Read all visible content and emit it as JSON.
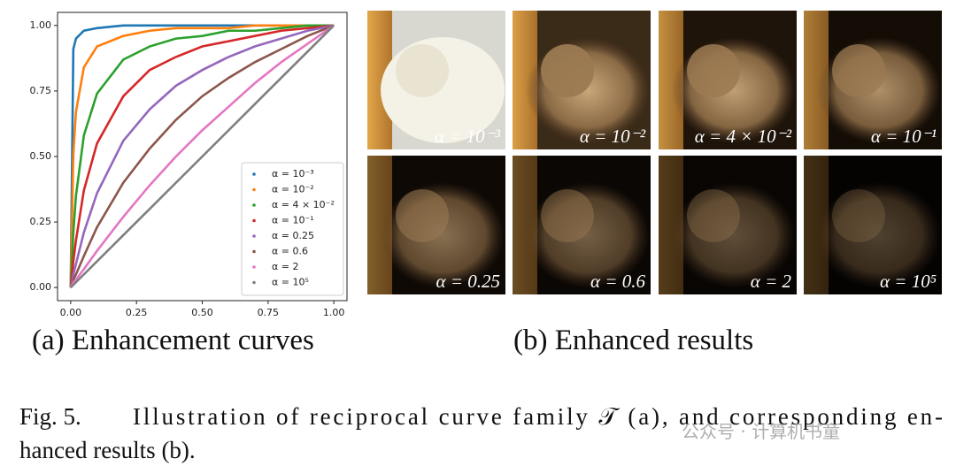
{
  "chart_data": {
    "type": "line",
    "x": [
      0,
      0.01,
      0.02,
      0.05,
      0.1,
      0.2,
      0.3,
      0.4,
      0.5,
      0.6,
      0.7,
      0.8,
      0.9,
      1
    ],
    "series": [
      {
        "name": "α = 10⁻³",
        "color": "#1f77b4",
        "values": [
          0,
          0.91,
          0.95,
          0.98,
          0.99,
          1,
          1,
          1,
          1,
          1,
          1,
          1,
          1,
          1
        ]
      },
      {
        "name": "α = 10⁻²",
        "color": "#ff7f0e",
        "values": [
          0,
          0.51,
          0.67,
          0.84,
          0.92,
          0.96,
          0.98,
          0.99,
          0.99,
          0.99,
          1,
          1,
          1,
          1
        ]
      },
      {
        "name": "α = 4 × 10⁻²",
        "color": "#2ca02c",
        "values": [
          0,
          0.21,
          0.35,
          0.58,
          0.74,
          0.87,
          0.92,
          0.95,
          0.96,
          0.98,
          0.98,
          0.99,
          1,
          1
        ]
      },
      {
        "name": "α = 10⁻¹",
        "color": "#d62728",
        "values": [
          0,
          0.1,
          0.18,
          0.37,
          0.55,
          0.73,
          0.83,
          0.88,
          0.92,
          0.94,
          0.96,
          0.98,
          0.99,
          1
        ]
      },
      {
        "name": "α = 0.25",
        "color": "#9467bd",
        "values": [
          0,
          0.05,
          0.09,
          0.21,
          0.36,
          0.56,
          0.68,
          0.77,
          0.83,
          0.88,
          0.92,
          0.95,
          0.98,
          1
        ]
      },
      {
        "name": "α = 0.6",
        "color": "#8c564b",
        "values": [
          0,
          0.03,
          0.05,
          0.12,
          0.23,
          0.4,
          0.53,
          0.64,
          0.73,
          0.8,
          0.86,
          0.91,
          0.96,
          1
        ]
      },
      {
        "name": "α = 2",
        "color": "#e377c2",
        "values": [
          0,
          0.02,
          0.03,
          0.07,
          0.14,
          0.27,
          0.39,
          0.5,
          0.6,
          0.69,
          0.78,
          0.86,
          0.93,
          1
        ]
      },
      {
        "name": "α = 10⁵",
        "color": "#7f7f7f",
        "values": [
          0,
          0.01,
          0.02,
          0.05,
          0.1,
          0.2,
          0.3,
          0.4,
          0.5,
          0.6,
          0.7,
          0.8,
          0.9,
          1
        ]
      }
    ],
    "xlim": [
      -0.05,
      1.05
    ],
    "ylim": [
      -0.05,
      1.05
    ],
    "xticks": [
      {
        "value": 0,
        "label": "0.00"
      },
      {
        "value": 0.25,
        "label": "0.25"
      },
      {
        "value": 0.5,
        "label": "0.50"
      },
      {
        "value": 0.75,
        "label": "0.75"
      },
      {
        "value": 1,
        "label": "1.00"
      }
    ],
    "yticks": [
      {
        "value": 0,
        "label": "0.00"
      },
      {
        "value": 0.25,
        "label": "0.25"
      },
      {
        "value": 0.5,
        "label": "0.50"
      },
      {
        "value": 0.75,
        "label": "0.75"
      },
      {
        "value": 1,
        "label": "1.00"
      }
    ],
    "legend": "lower right"
  },
  "panels": {
    "labels": [
      "α = 10⁻³",
      "α = 10⁻²",
      "α = 4 × 10⁻²",
      "α = 10⁻¹",
      "α = 0.25",
      "α = 0.6",
      "α = 2",
      "α = 10⁵"
    ]
  },
  "captions": {
    "a": "(a) Enhancement curves",
    "b": "(b) Enhanced results",
    "figure_label": "Fig. 5.",
    "figure_text": "Illustration of reciprocal curve family 𝒯 (a), and corresponding en-",
    "figure_text_2": "hanced results (b).",
    "watermark": "公众号 · 计算机书童"
  }
}
